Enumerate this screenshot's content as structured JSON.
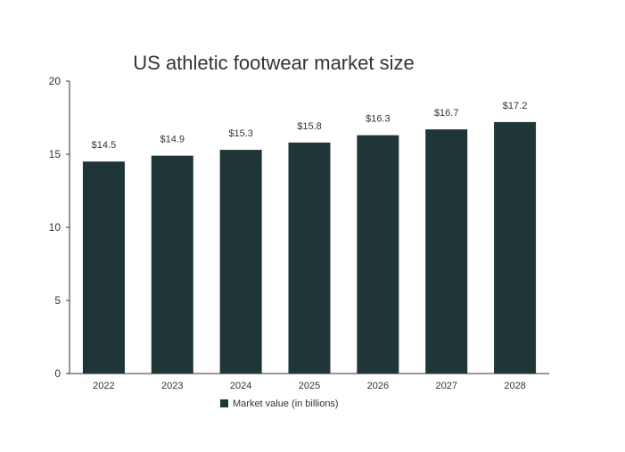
{
  "colors": {
    "bar": "#1f3538",
    "axis": "#333333",
    "text": "#333333",
    "title": "#333333",
    "background": "#ffffff"
  },
  "chart_data": {
    "type": "bar",
    "title": "US athletic footwear market size",
    "xlabel": "",
    "ylabel": "",
    "categories": [
      "2022",
      "2023",
      "2024",
      "2025",
      "2026",
      "2027",
      "2028"
    ],
    "series": [
      {
        "name": "Market value (in billions)",
        "values": [
          14.5,
          14.9,
          15.3,
          15.8,
          16.3,
          16.7,
          17.2
        ],
        "data_labels": [
          "$14.5",
          "$14.9",
          "$15.3",
          "$15.8",
          "$16.3",
          "$16.7",
          "$17.2"
        ]
      }
    ],
    "ylim": [
      0,
      20
    ],
    "yticks": [
      0,
      5,
      10,
      15,
      20
    ],
    "grid": false,
    "legend": {
      "position": "bottom",
      "entries": [
        "Market value (in billions)"
      ]
    }
  }
}
